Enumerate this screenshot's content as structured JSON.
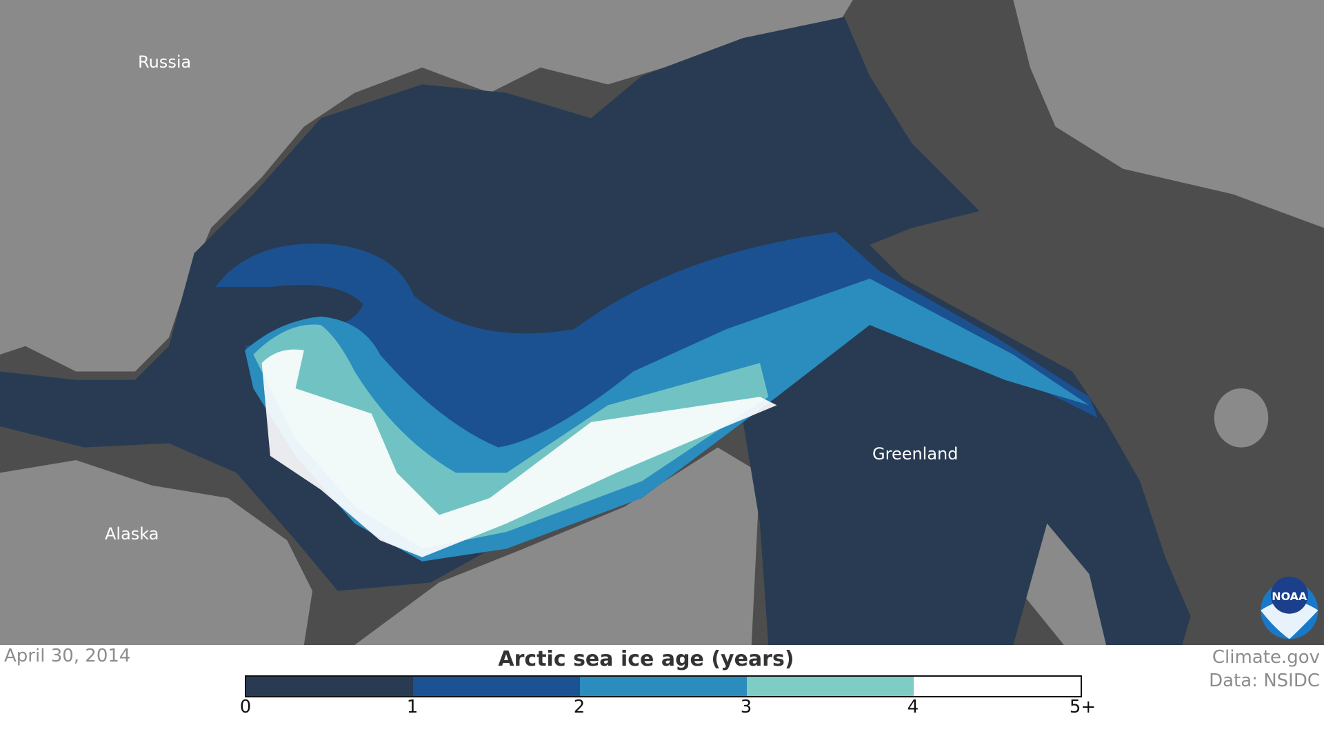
{
  "map": {
    "labels": {
      "russia": "Russia",
      "alaska": "Alaska",
      "greenland": "Greenland"
    },
    "colors": {
      "land": "#8a8a8a",
      "sea": "#4d4d4d",
      "border": "#555555"
    },
    "logo_text": "NOAA"
  },
  "date": "April 30, 2014",
  "credit": {
    "line1": "Climate.gov",
    "line2": "Data: NSIDC"
  },
  "legend": {
    "title": "Arctic sea ice age (years)",
    "bins": [
      {
        "range": "0-1",
        "color": "#283b52"
      },
      {
        "range": "1-2",
        "color": "#1a5294"
      },
      {
        "range": "2-3",
        "color": "#2b8cbe"
      },
      {
        "range": "3-4",
        "color": "#7ecdc4"
      },
      {
        "range": "4-5+",
        "color": "#ffffff"
      }
    ],
    "ticks": [
      "0",
      "1",
      "2",
      "3",
      "4",
      "5+"
    ]
  }
}
